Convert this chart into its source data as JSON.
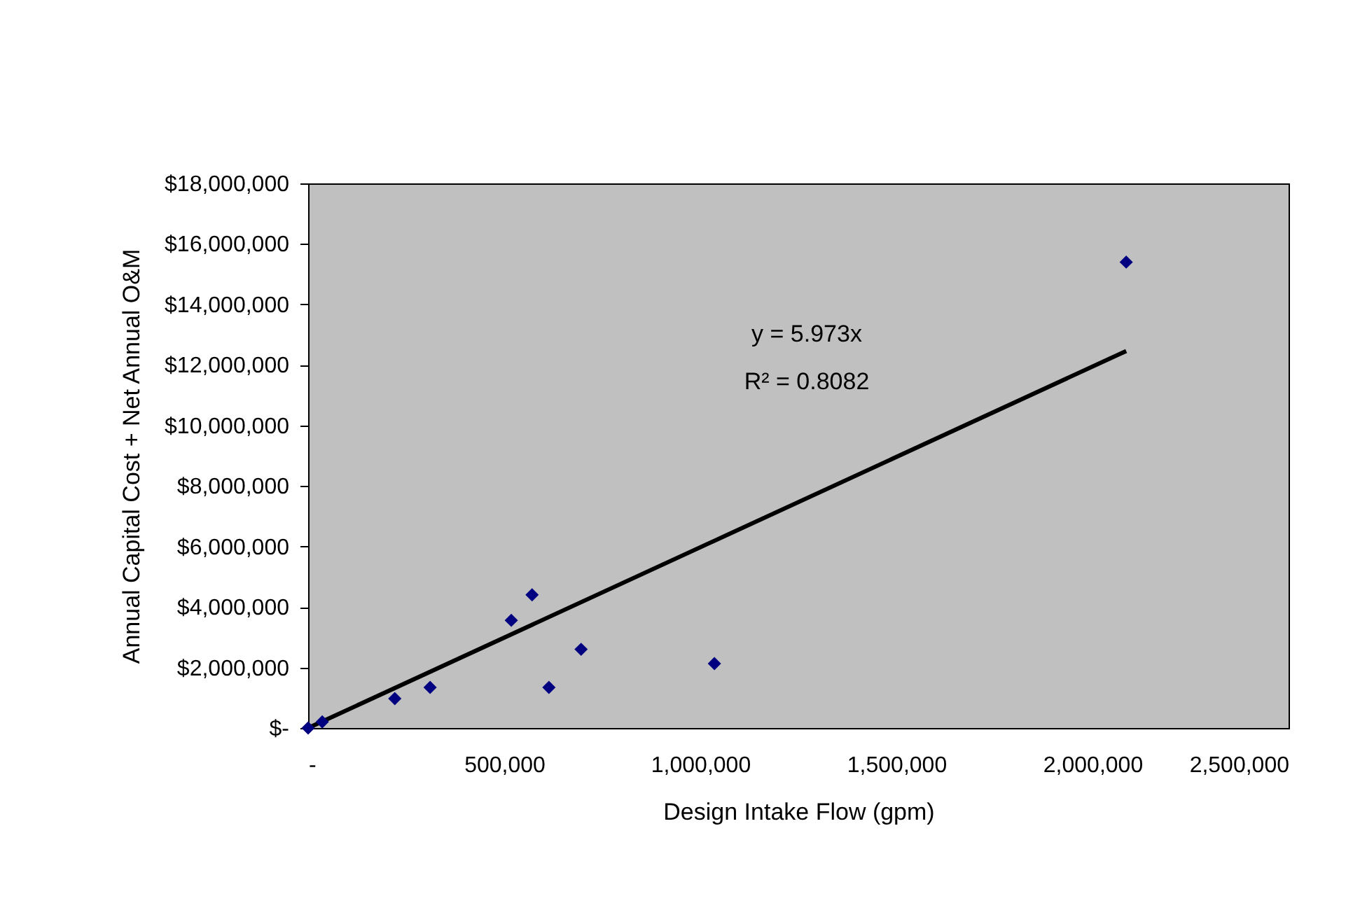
{
  "chart_data": {
    "type": "scatter",
    "xlabel": "Design Intake Flow (gpm)",
    "ylabel": "Annual Capital Cost + Net Annual O&M",
    "annotations": [
      "y  = 5.973x",
      "R² = 0.8082"
    ],
    "xlim": [
      0,
      2500000
    ],
    "xticks": [
      {
        "value": 0,
        "label": "-"
      },
      {
        "value": 500000,
        "label": "500,000"
      },
      {
        "value": 1000000,
        "label": "1,000,000"
      },
      {
        "value": 1500000,
        "label": "1,500,000"
      },
      {
        "value": 2000000,
        "label": "2,000,000"
      },
      {
        "value": 2500000,
        "label": "2,500,000"
      }
    ],
    "ylim": [
      0,
      18000000
    ],
    "yticks": [
      {
        "value": 0,
        "label": "$-"
      },
      {
        "value": 2000000,
        "label": "$2,000,000"
      },
      {
        "value": 4000000,
        "label": "$4,000,000"
      },
      {
        "value": 6000000,
        "label": "$6,000,000"
      },
      {
        "value": 8000000,
        "label": "$8,000,000"
      },
      {
        "value": 10000000,
        "label": "$10,000,000"
      },
      {
        "value": 12000000,
        "label": "$12,000,000"
      },
      {
        "value": 14000000,
        "label": "$14,000,000"
      },
      {
        "value": 16000000,
        "label": "$16,000,000"
      },
      {
        "value": 18000000,
        "label": "$18,000,000"
      }
    ],
    "grid": false,
    "series": [
      {
        "marker": "diamond",
        "color": "#000080",
        "x": [
          0,
          36000,
          221000,
          311000,
          518000,
          571000,
          614000,
          696000,
          1036000,
          2086000
        ],
        "values": [
          0,
          200000,
          970000,
          1340000,
          3560000,
          4400000,
          1340000,
          2600000,
          2130000,
          15400000
        ]
      },
      {
        "type": "line",
        "color": "#000000",
        "line_style": "solid",
        "x": [
          0,
          2086000
        ],
        "values": [
          0,
          12460000
        ]
      }
    ]
  }
}
